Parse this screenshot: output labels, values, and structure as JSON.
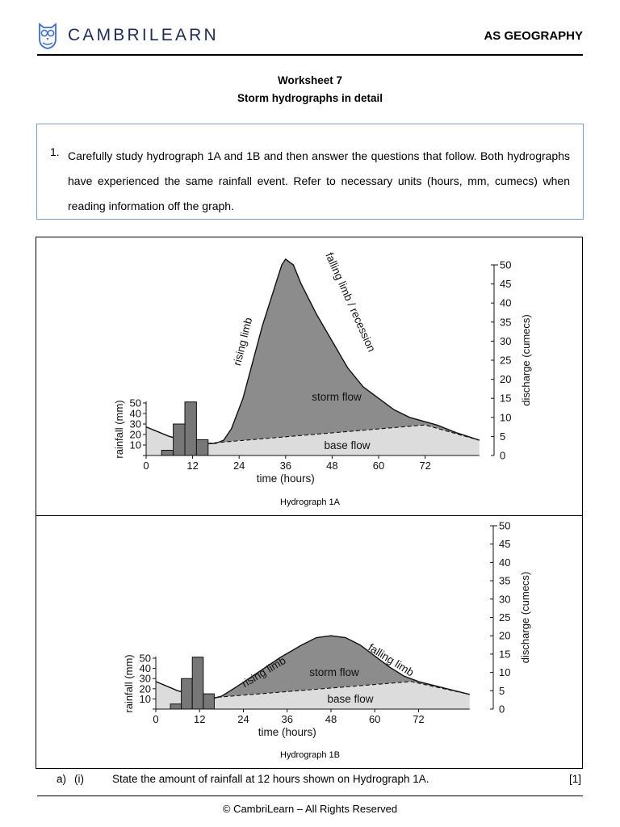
{
  "header": {
    "brand_name": "CAMBRILEARN",
    "logo_icon": "owl-logo-icon",
    "subject": "AS GEOGRAPHY",
    "brand_color": "#1f2b5b"
  },
  "title": {
    "line1": "Worksheet 7",
    "line2": "Storm hydrographs  in detail"
  },
  "question": {
    "number": "1.",
    "text": "Carefully study hydrograph 1A and 1B and then answer the questions that follow. Both hydrographs have experienced the same rainfall event. Refer to necessary units (hours, mm, cumecs) when reading information off the graph."
  },
  "figure": {
    "caption_a": "Hydrograph  1A",
    "caption_b": "Hydrograph  1B"
  },
  "chart_data": [
    {
      "type": "area",
      "caption": "Hydrograph  1A",
      "xlabel": "time (hours)",
      "x_ticks": [
        "0",
        "12",
        "24",
        "36",
        "48",
        "60",
        "72"
      ],
      "rain_axis": {
        "label": "rainfall (mm)",
        "ticks": [
          "0",
          "10",
          "20",
          "30",
          "40",
          "50"
        ],
        "range": [
          0,
          50
        ]
      },
      "discharge_axis": {
        "label": "discharge (cumecs)",
        "ticks": [
          "0",
          "5",
          "10",
          "15",
          "20",
          "25",
          "30",
          "35",
          "40",
          "45",
          "50"
        ],
        "range": [
          0,
          50
        ]
      },
      "rainfall_bars": {
        "x_start": [
          4,
          7,
          10,
          13
        ],
        "width": 3,
        "values": [
          5,
          30,
          51,
          15
        ]
      },
      "storm_flow": {
        "x": [
          0,
          6,
          14,
          18,
          20,
          22,
          25,
          30,
          35,
          36,
          38,
          40,
          44,
          52,
          56,
          60,
          64,
          68,
          75,
          80,
          86
        ],
        "y": [
          7.5,
          5,
          3,
          3.2,
          4,
          7,
          15,
          34,
          50,
          51.5,
          50,
          45,
          37,
          23,
          18,
          15,
          12,
          10,
          8,
          6,
          4
        ]
      },
      "base_flow": {
        "x": [
          0,
          6,
          14,
          72,
          86
        ],
        "y": [
          7.5,
          5,
          3,
          8,
          4
        ]
      },
      "colors": {
        "storm_fill": "#8c8c8c",
        "base_fill": "#dcdcdc",
        "bar_fill": "#777777"
      },
      "annotations": [
        "rising limb",
        "falling limb / recession",
        "storm flow",
        "base flow"
      ]
    },
    {
      "type": "area",
      "caption": "Hydrograph  1B",
      "xlabel": "time (hours)",
      "x_ticks": [
        "0",
        "12",
        "24",
        "36",
        "48",
        "60",
        "72"
      ],
      "rain_axis": {
        "label": "rainfall (mm)",
        "ticks": [
          "0",
          "10",
          "20",
          "30",
          "40",
          "50"
        ],
        "range": [
          0,
          50
        ]
      },
      "discharge_axis": {
        "label": "discharge (cumecs)",
        "ticks": [
          "0",
          "5",
          "10",
          "15",
          "20",
          "25",
          "30",
          "35",
          "40",
          "45",
          "50"
        ],
        "range": [
          0,
          50
        ]
      },
      "rainfall_bars": {
        "x_start": [
          4,
          7,
          10,
          13
        ],
        "width": 3,
        "values": [
          5,
          30,
          51,
          15
        ]
      },
      "storm_flow": {
        "x": [
          0,
          6,
          14,
          16,
          18,
          22,
          28,
          34,
          40,
          44,
          48,
          52,
          56,
          60,
          64,
          68,
          72,
          78,
          86
        ],
        "y": [
          7.5,
          5,
          3,
          3,
          3.5,
          6,
          10,
          14,
          17.5,
          19.5,
          20,
          19.5,
          17.5,
          14.5,
          11.5,
          9,
          7.5,
          6,
          4
        ]
      },
      "base_flow": {
        "x": [
          0,
          6,
          14,
          70,
          86
        ],
        "y": [
          7.5,
          5,
          3,
          7.5,
          4
        ]
      },
      "colors": {
        "storm_fill": "#8c8c8c",
        "base_fill": "#dcdcdc",
        "bar_fill": "#777777"
      },
      "annotations": [
        "rising limb",
        "falling limb",
        "storm flow",
        "base flow"
      ]
    }
  ],
  "question_a": {
    "label_a": "a)",
    "label_i": "(i)",
    "text": "State the amount of rainfall at 12 hours shown on Hydrograph 1A.",
    "marks": "[1]"
  },
  "footer": {
    "text": "© CambriLearn – All Rights Reserved"
  }
}
